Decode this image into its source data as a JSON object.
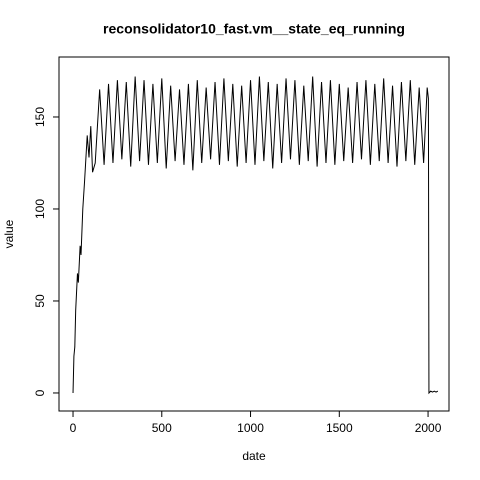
{
  "chart_data": {
    "type": "line",
    "title": "reconsolidator10_fast.vm__state_eq_running",
    "xlabel": "date",
    "ylabel": "value",
    "x": [
      0,
      5,
      10,
      15,
      25,
      30,
      40,
      45,
      55,
      65,
      80,
      90,
      100,
      110,
      125,
      150,
      175,
      200,
      225,
      250,
      275,
      300,
      325,
      350,
      375,
      400,
      425,
      450,
      475,
      500,
      525,
      550,
      575,
      600,
      625,
      650,
      675,
      700,
      725,
      750,
      775,
      800,
      825,
      850,
      875,
      900,
      925,
      950,
      975,
      1000,
      1025,
      1050,
      1075,
      1100,
      1125,
      1150,
      1175,
      1200,
      1225,
      1250,
      1275,
      1300,
      1325,
      1350,
      1375,
      1400,
      1425,
      1450,
      1475,
      1500,
      1525,
      1550,
      1575,
      1600,
      1625,
      1650,
      1675,
      1700,
      1725,
      1750,
      1775,
      1800,
      1825,
      1850,
      1875,
      1900,
      1925,
      1950,
      1975,
      1995,
      2002,
      2005,
      2015,
      2025,
      2035,
      2045,
      2055
    ],
    "values": [
      0,
      20,
      25,
      45,
      65,
      60,
      80,
      75,
      100,
      115,
      140,
      128,
      145,
      120,
      125,
      165,
      124,
      168,
      125,
      170,
      127,
      169,
      123,
      172,
      126,
      170,
      124,
      168,
      125,
      171,
      122,
      167,
      126,
      165,
      124,
      168,
      121,
      170,
      125,
      166,
      127,
      169,
      124,
      171,
      126,
      168,
      123,
      167,
      125,
      170,
      124,
      172,
      126,
      169,
      122,
      168,
      125,
      171,
      127,
      170,
      124,
      167,
      126,
      172,
      123,
      169,
      125,
      170,
      124,
      168,
      126,
      166,
      125,
      169,
      127,
      170,
      124,
      168,
      126,
      171,
      125,
      167,
      123,
      169,
      126,
      170,
      124,
      166,
      125,
      166,
      160,
      0,
      1,
      0.5,
      1,
      0.5,
      1
    ],
    "color": "#000000",
    "xlim": [
      -79,
      2118
    ],
    "ylim": [
      -9.8,
      182.6
    ],
    "xticks": [
      0,
      500,
      1000,
      1500,
      2000
    ],
    "yticks": [
      0,
      50,
      100,
      150
    ]
  }
}
